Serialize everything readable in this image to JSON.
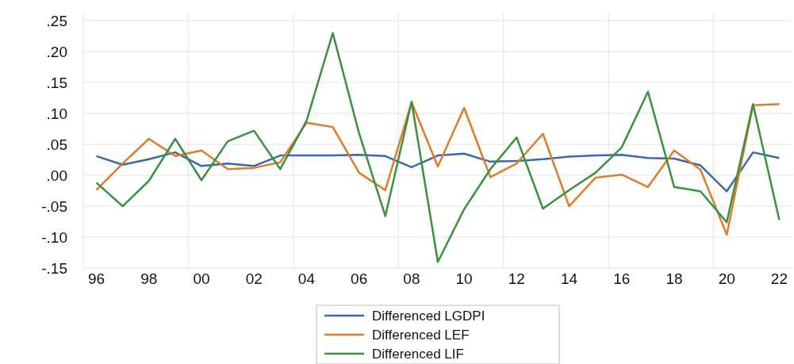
{
  "chart_data": {
    "type": "line",
    "x": [
      1996,
      1997,
      1998,
      1999,
      2000,
      2001,
      2002,
      2003,
      2004,
      2005,
      2006,
      2007,
      2008,
      2009,
      2010,
      2011,
      2012,
      2013,
      2014,
      2015,
      2016,
      2017,
      2018,
      2019,
      2020,
      2021,
      2022
    ],
    "series": [
      {
        "name": "Differenced LGDPI",
        "color": "#3a67b0",
        "values": [
          0.031,
          0.017,
          0.026,
          0.037,
          0.015,
          0.019,
          0.015,
          0.032,
          0.032,
          0.032,
          0.033,
          0.031,
          0.013,
          0.032,
          0.035,
          0.022,
          0.023,
          0.026,
          0.03,
          0.032,
          0.033,
          0.028,
          0.027,
          0.016,
          -0.026,
          0.037,
          0.028
        ]
      },
      {
        "name": "Differenced LEF",
        "color": "#e07b29",
        "values": [
          -0.024,
          0.019,
          0.059,
          0.031,
          0.04,
          0.01,
          0.012,
          0.021,
          0.085,
          0.078,
          0.004,
          -0.024,
          0.118,
          0.014,
          0.109,
          -0.003,
          0.019,
          0.067,
          -0.05,
          -0.004,
          0.001,
          -0.019,
          0.04,
          0.009,
          -0.096,
          0.113,
          0.115
        ]
      },
      {
        "name": "Differenced LIF",
        "color": "#3a9140",
        "values": [
          -0.012,
          -0.05,
          -0.009,
          0.059,
          -0.008,
          0.055,
          0.072,
          0.01,
          0.088,
          0.23,
          0.068,
          -0.066,
          0.119,
          -0.14,
          -0.055,
          0.01,
          0.061,
          -0.054,
          -0.024,
          0.004,
          0.045,
          0.135,
          -0.019,
          -0.026,
          -0.076,
          0.115,
          -0.072
        ]
      }
    ],
    "xlim": [
      1995.5,
      2022.5
    ],
    "xticks": [
      {
        "value": 1995.5,
        "label": null
      },
      {
        "value": 1996,
        "label": "96"
      },
      {
        "value": 1998,
        "label": "98"
      },
      {
        "value": 1999.5,
        "label": null
      },
      {
        "value": 2000,
        "label": "00"
      },
      {
        "value": 2002,
        "label": "02"
      },
      {
        "value": 2003.5,
        "label": null
      },
      {
        "value": 2004,
        "label": "04"
      },
      {
        "value": 2006,
        "label": "06"
      },
      {
        "value": 2007.5,
        "label": null
      },
      {
        "value": 2008,
        "label": "08"
      },
      {
        "value": 2010,
        "label": "10"
      },
      {
        "value": 2011.5,
        "label": null
      },
      {
        "value": 2012,
        "label": "12"
      },
      {
        "value": 2014,
        "label": "14"
      },
      {
        "value": 2015.5,
        "label": null
      },
      {
        "value": 2016,
        "label": "16"
      },
      {
        "value": 2018,
        "label": "18"
      },
      {
        "value": 2019.5,
        "label": null
      },
      {
        "value": 2020,
        "label": "20"
      },
      {
        "value": 2022,
        "label": "22"
      }
    ],
    "ylim": [
      -0.15,
      0.25
    ],
    "yticks": [
      {
        "value": -0.15,
        "label": "-.15"
      },
      {
        "value": -0.1,
        "label": "-.10"
      },
      {
        "value": -0.05,
        "label": "-.05"
      },
      {
        "value": 0,
        "label": ".00"
      },
      {
        "value": 0.05,
        "label": ".05"
      },
      {
        "value": 0.1,
        "label": ".10"
      },
      {
        "value": 0.15,
        "label": ".15"
      },
      {
        "value": 0.2,
        "label": ".20"
      },
      {
        "value": 0.25,
        "label": ".25"
      }
    ],
    "grid": true,
    "legend": "bottom",
    "marker": "none",
    "line_style": "solid"
  }
}
